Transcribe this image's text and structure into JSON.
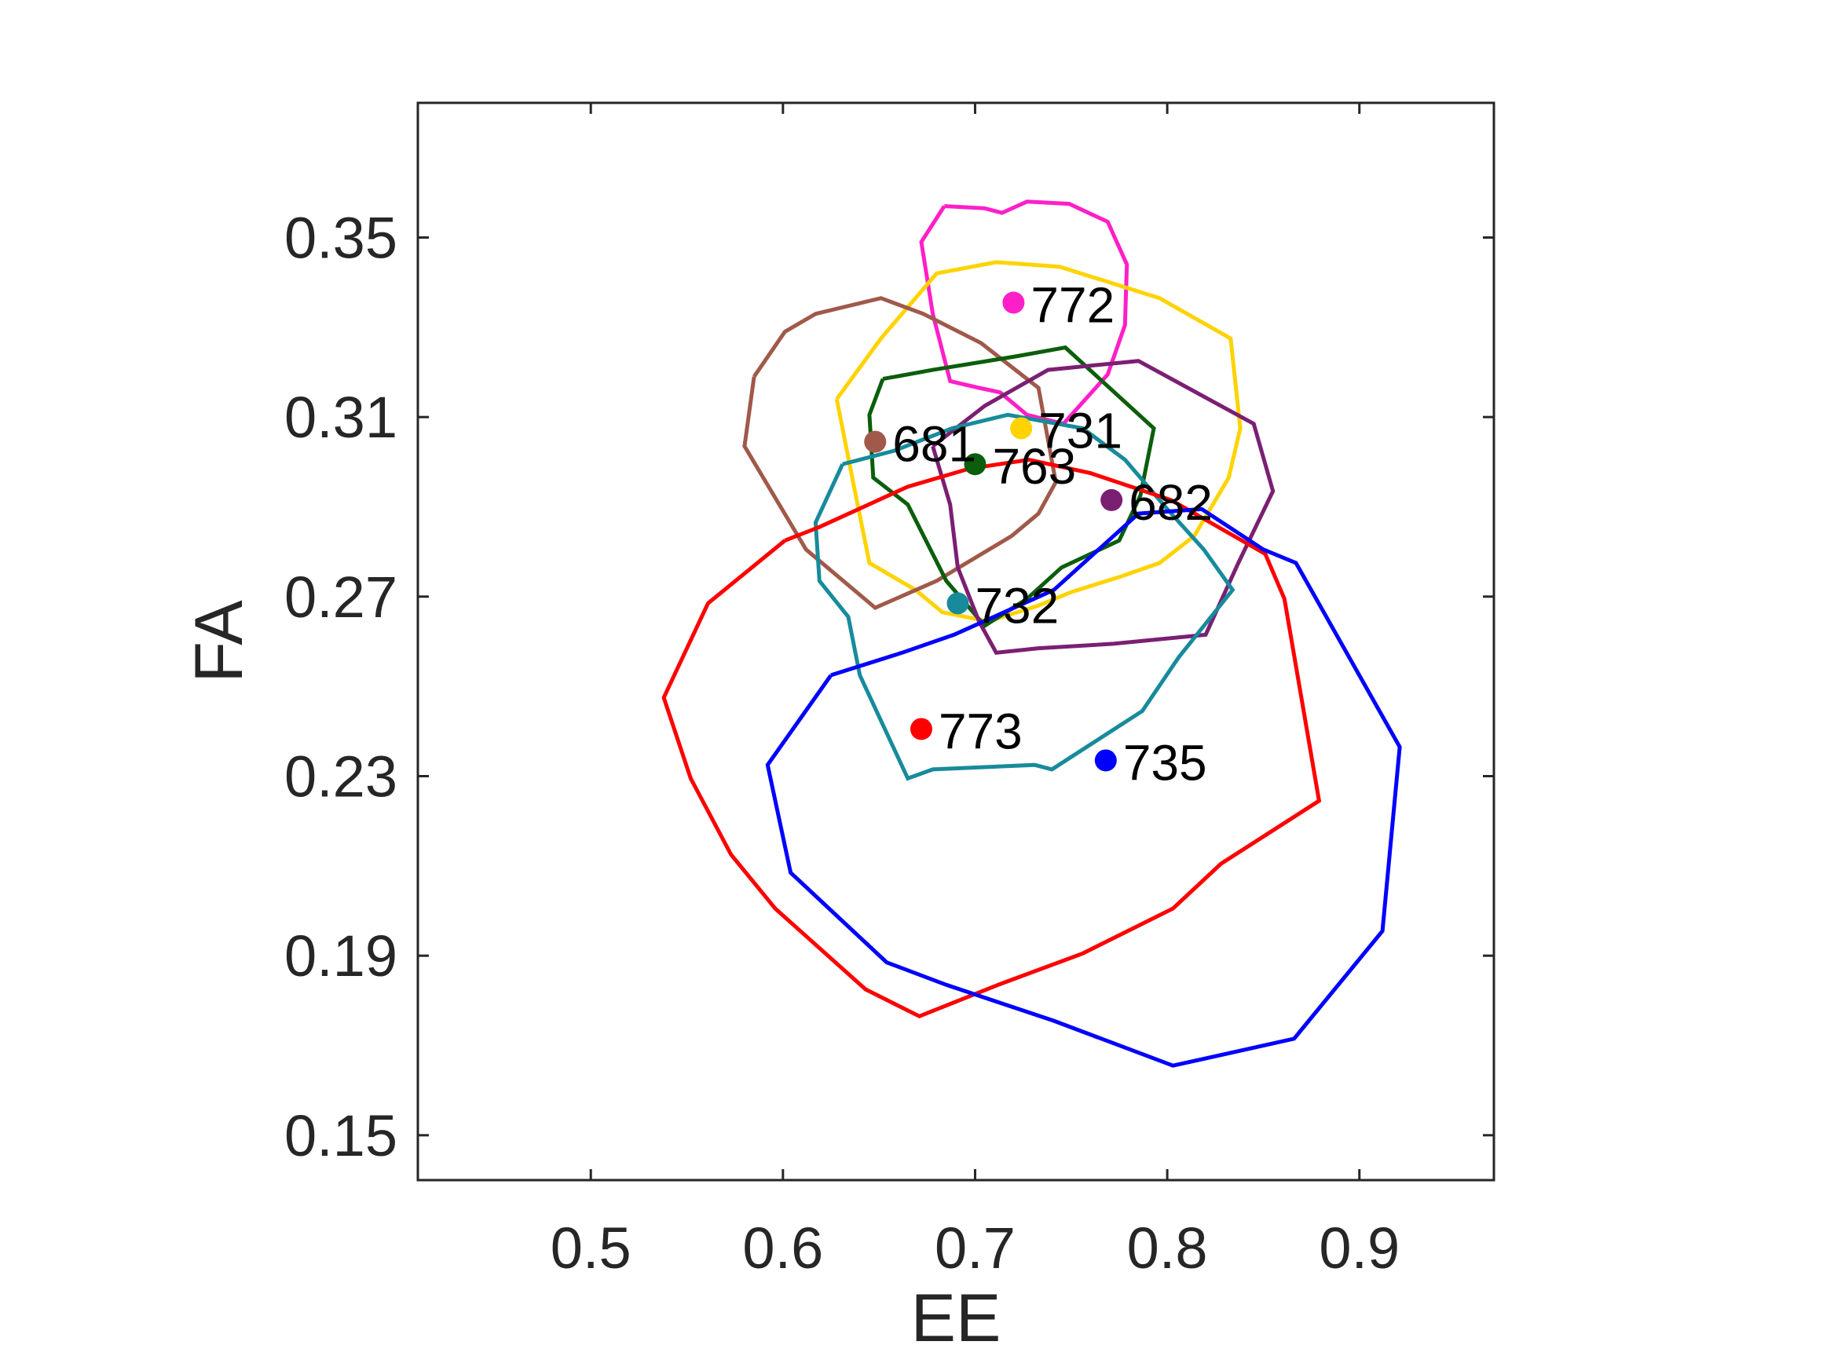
{
  "chart_data": {
    "type": "scatter",
    "title": "",
    "xlabel": "EE",
    "ylabel": "FA",
    "xlim": [
      0.41,
      0.97
    ],
    "ylim": [
      0.14,
      0.38
    ],
    "xticks": [
      0.5,
      0.6,
      0.7,
      0.8,
      0.9
    ],
    "xtick_labels": [
      "0.5",
      "0.6",
      "0.7",
      "0.8",
      "0.9"
    ],
    "yticks": [
      0.15,
      0.19,
      0.23,
      0.27,
      0.31,
      0.35
    ],
    "ytick_labels": [
      "0.15",
      "0.19",
      "0.23",
      "0.27",
      "0.31",
      "0.35"
    ],
    "grid": false,
    "box": true,
    "series": [
      {
        "name": "772",
        "color": "#FF1FC8",
        "point": [
          0.72,
          0.3355
        ],
        "contour": [
          [
            0.684,
            0.357
          ],
          [
            0.705,
            0.3565
          ],
          [
            0.714,
            0.3555
          ],
          [
            0.727,
            0.358
          ],
          [
            0.749,
            0.3575
          ],
          [
            0.769,
            0.3535
          ],
          [
            0.779,
            0.344
          ],
          [
            0.778,
            0.3305
          ],
          [
            0.769,
            0.3195
          ],
          [
            0.746,
            0.3085
          ],
          [
            0.727,
            0.3105
          ],
          [
            0.713,
            0.3155
          ],
          [
            0.702,
            0.3165
          ],
          [
            0.687,
            0.318
          ],
          [
            0.678,
            0.333
          ],
          [
            0.672,
            0.349
          ],
          [
            0.684,
            0.357
          ]
        ]
      },
      {
        "name": "731",
        "color": "#FFD300",
        "point": [
          0.724,
          0.3075
        ],
        "contour": [
          [
            0.628,
            0.314
          ],
          [
            0.651,
            0.3275
          ],
          [
            0.68,
            0.342
          ],
          [
            0.711,
            0.3445
          ],
          [
            0.744,
            0.3435
          ],
          [
            0.796,
            0.3365
          ],
          [
            0.833,
            0.3275
          ],
          [
            0.838,
            0.3075
          ],
          [
            0.832,
            0.2965
          ],
          [
            0.814,
            0.2835
          ],
          [
            0.796,
            0.2775
          ],
          [
            0.776,
            0.2745
          ],
          [
            0.75,
            0.271
          ],
          [
            0.733,
            0.268
          ],
          [
            0.707,
            0.2645
          ],
          [
            0.683,
            0.2665
          ],
          [
            0.669,
            0.2715
          ],
          [
            0.645,
            0.2775
          ],
          [
            0.637,
            0.2945
          ],
          [
            0.628,
            0.314
          ]
        ]
      },
      {
        "name": "681",
        "color": "#A0594A",
        "point": [
          0.648,
          0.3045
        ],
        "contour": [
          [
            0.585,
            0.319
          ],
          [
            0.601,
            0.329
          ],
          [
            0.617,
            0.333
          ],
          [
            0.651,
            0.3365
          ],
          [
            0.673,
            0.333
          ],
          [
            0.703,
            0.3265
          ],
          [
            0.733,
            0.3165
          ],
          [
            0.742,
            0.2955
          ],
          [
            0.733,
            0.2885
          ],
          [
            0.719,
            0.2835
          ],
          [
            0.68,
            0.2735
          ],
          [
            0.648,
            0.2675
          ],
          [
            0.612,
            0.2805
          ],
          [
            0.58,
            0.3035
          ],
          [
            0.585,
            0.319
          ]
        ]
      },
      {
        "name": "763",
        "color": "#0B5E0B",
        "point": [
          0.7,
          0.2995
        ],
        "contour": [
          [
            0.652,
            0.3185
          ],
          [
            0.678,
            0.3205
          ],
          [
            0.721,
            0.3235
          ],
          [
            0.747,
            0.3255
          ],
          [
            0.793,
            0.3075
          ],
          [
            0.786,
            0.2925
          ],
          [
            0.775,
            0.2825
          ],
          [
            0.745,
            0.2765
          ],
          [
            0.727,
            0.2695
          ],
          [
            0.705,
            0.2635
          ],
          [
            0.685,
            0.2735
          ],
          [
            0.665,
            0.2905
          ],
          [
            0.647,
            0.2965
          ],
          [
            0.645,
            0.3105
          ],
          [
            0.652,
            0.3185
          ]
        ]
      },
      {
        "name": "682",
        "color": "#7B1F73",
        "point": [
          0.771,
          0.2915
        ],
        "contour": [
          [
            0.678,
            0.3035
          ],
          [
            0.705,
            0.3125
          ],
          [
            0.738,
            0.3205
          ],
          [
            0.785,
            0.3225
          ],
          [
            0.845,
            0.3085
          ],
          [
            0.855,
            0.2935
          ],
          [
            0.837,
            0.2775
          ],
          [
            0.82,
            0.2615
          ],
          [
            0.772,
            0.2595
          ],
          [
            0.733,
            0.2585
          ],
          [
            0.711,
            0.2575
          ],
          [
            0.702,
            0.2645
          ],
          [
            0.691,
            0.2765
          ],
          [
            0.687,
            0.2905
          ],
          [
            0.678,
            0.3035
          ]
        ]
      },
      {
        "name": "732",
        "color": "#178B9B",
        "point": [
          0.691,
          0.2685
        ],
        "contour": [
          [
            0.631,
            0.2995
          ],
          [
            0.658,
            0.3025
          ],
          [
            0.688,
            0.3075
          ],
          [
            0.717,
            0.3105
          ],
          [
            0.756,
            0.3075
          ],
          [
            0.778,
            0.3005
          ],
          [
            0.8,
            0.2895
          ],
          [
            0.819,
            0.2805
          ],
          [
            0.834,
            0.2715
          ],
          [
            0.806,
            0.2565
          ],
          [
            0.787,
            0.2445
          ],
          [
            0.74,
            0.2315
          ],
          [
            0.731,
            0.2325
          ],
          [
            0.678,
            0.2315
          ],
          [
            0.665,
            0.2295
          ],
          [
            0.64,
            0.2525
          ],
          [
            0.634,
            0.2655
          ],
          [
            0.619,
            0.2735
          ],
          [
            0.617,
            0.2865
          ],
          [
            0.631,
            0.2995
          ]
        ]
      },
      {
        "name": "773",
        "color": "#FF0000",
        "point": [
          0.672,
          0.2405
        ],
        "contour": [
          [
            0.601,
            0.2825
          ],
          [
            0.619,
            0.2855
          ],
          [
            0.665,
            0.2945
          ],
          [
            0.697,
            0.2985
          ],
          [
            0.728,
            0.3005
          ],
          [
            0.76,
            0.2975
          ],
          [
            0.802,
            0.2915
          ],
          [
            0.851,
            0.2795
          ],
          [
            0.861,
            0.2695
          ],
          [
            0.879,
            0.2245
          ],
          [
            0.828,
            0.2105
          ],
          [
            0.803,
            0.2005
          ],
          [
            0.756,
            0.1905
          ],
          [
            0.712,
            0.1835
          ],
          [
            0.671,
            0.1765
          ],
          [
            0.643,
            0.1825
          ],
          [
            0.596,
            0.2005
          ],
          [
            0.573,
            0.2125
          ],
          [
            0.552,
            0.2295
          ],
          [
            0.538,
            0.2475
          ],
          [
            0.561,
            0.2685
          ],
          [
            0.601,
            0.2825
          ]
        ]
      },
      {
        "name": "735",
        "color": "#0000FF",
        "point": [
          0.768,
          0.2335
        ],
        "contour": [
          [
            0.625,
            0.2525
          ],
          [
            0.662,
            0.2575
          ],
          [
            0.689,
            0.2615
          ],
          [
            0.741,
            0.2715
          ],
          [
            0.785,
            0.2885
          ],
          [
            0.818,
            0.2895
          ],
          [
            0.85,
            0.2805
          ],
          [
            0.867,
            0.2775
          ],
          [
            0.921,
            0.2365
          ],
          [
            0.912,
            0.1955
          ],
          [
            0.866,
            0.1715
          ],
          [
            0.803,
            0.1655
          ],
          [
            0.741,
            0.1755
          ],
          [
            0.685,
            0.1835
          ],
          [
            0.654,
            0.1885
          ],
          [
            0.604,
            0.2085
          ],
          [
            0.592,
            0.2325
          ],
          [
            0.625,
            0.2525
          ]
        ]
      }
    ]
  }
}
